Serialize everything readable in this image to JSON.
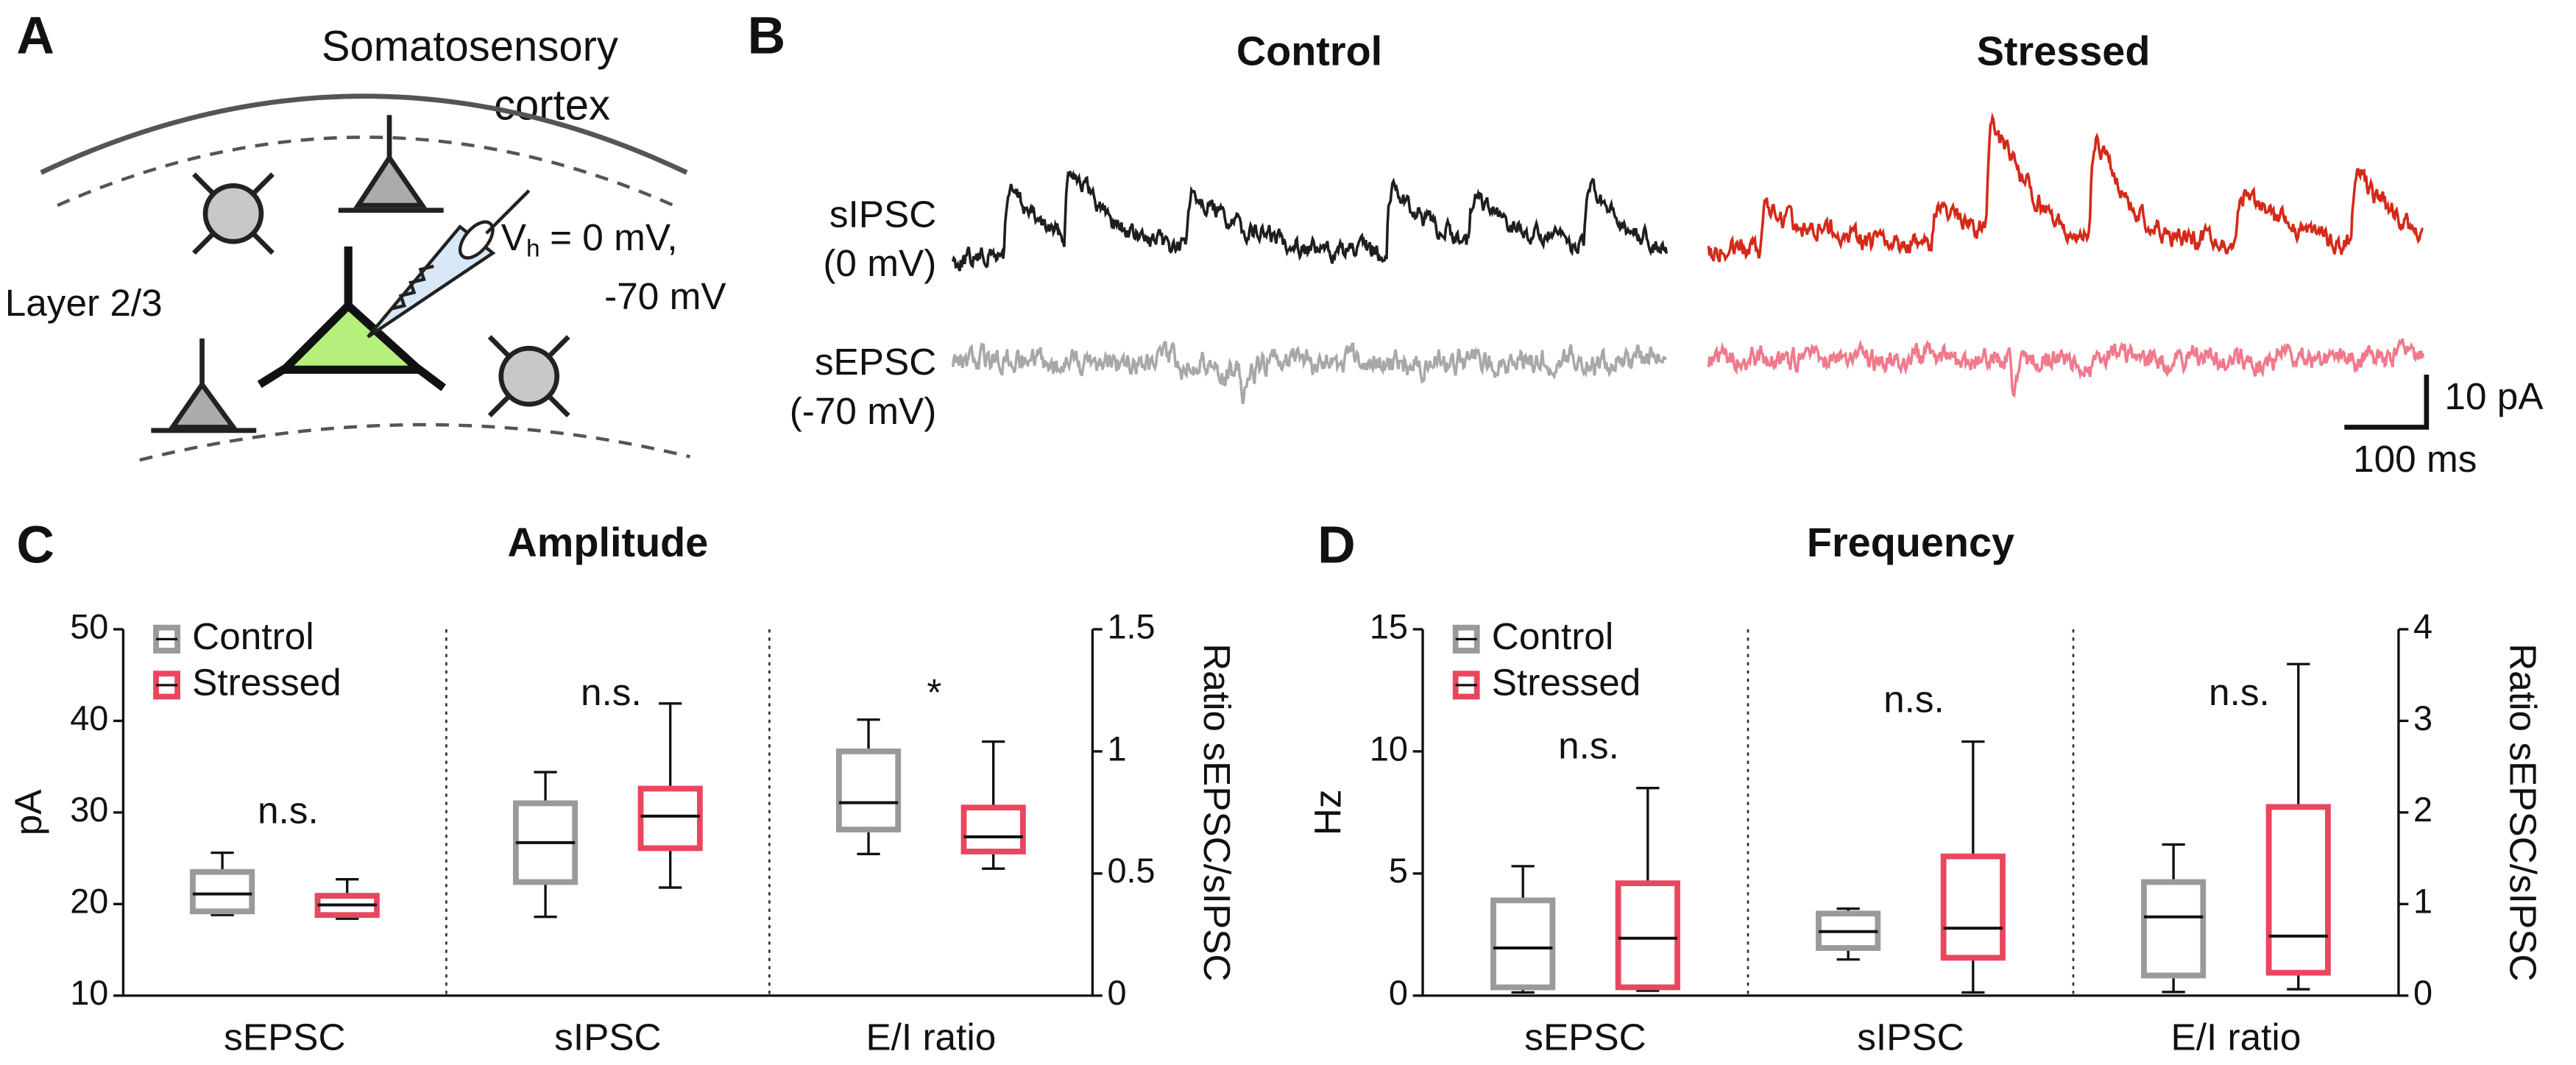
{
  "panel_a": {
    "letter": "A",
    "region": [
      "Somatosensory",
      "cortex"
    ],
    "holding": {
      "symbol": "V",
      "subscript": "h",
      "text": "= 0 mV,",
      "text2": "-70 mV"
    },
    "layer": "Layer 2/3"
  },
  "panel_b": {
    "letter": "B",
    "conditions": [
      "Control",
      "Stressed"
    ],
    "traces": [
      {
        "label": "sIPSC",
        "holding": "(0 mV)"
      },
      {
        "label": "sEPSC",
        "holding": "(-70 mV)"
      }
    ],
    "scale_bar": {
      "y": "10 pA",
      "x": "100 ms"
    }
  },
  "chart_data": [
    {
      "type": "box",
      "panel": "C",
      "title": "Amplitude",
      "ylabel": "pA",
      "y2label": "Ratio sEPSC/sIPSC",
      "categories": [
        "sEPSC",
        "sIPSC",
        "E/I ratio"
      ],
      "category_axis": [
        "y",
        "y",
        "y2"
      ],
      "ylim": [
        10,
        50
      ],
      "yticks": [
        10,
        20,
        30,
        40,
        50
      ],
      "y2lim": [
        0,
        1.5
      ],
      "y2ticks": [
        0,
        0.5,
        1,
        1.5
      ],
      "grid": false,
      "legend": "upper left",
      "series": [
        {
          "name": "Control",
          "color": "#9a9a9a",
          "values": [
            {
              "low": 18.8,
              "q1": 19.2,
              "median": 21.1,
              "q3": 23.5,
              "high": 25.6
            },
            {
              "low": 18.6,
              "q1": 22.4,
              "median": 26.7,
              "q3": 31.0,
              "high": 34.4
            },
            {
              "low": 0.58,
              "q1": 0.68,
              "median": 0.79,
              "q3": 1.0,
              "high": 1.13
            }
          ]
        },
        {
          "name": "Stressed",
          "color": "#e8475f",
          "values": [
            {
              "low": 18.4,
              "q1": 18.8,
              "median": 19.9,
              "q3": 20.9,
              "high": 22.7
            },
            {
              "low": 21.8,
              "q1": 26.1,
              "median": 29.6,
              "q3": 32.6,
              "high": 41.9
            },
            {
              "low": 0.52,
              "q1": 0.59,
              "median": 0.65,
              "q3": 0.77,
              "high": 1.04
            }
          ]
        }
      ],
      "annotations": [
        "n.s.",
        "n.s.",
        "*"
      ]
    },
    {
      "type": "box",
      "panel": "D",
      "title": "Frequency",
      "ylabel": "Hz",
      "y2label": "Ratio sEPSC/sIPSC",
      "categories": [
        "sEPSC",
        "sIPSC",
        "E/I ratio"
      ],
      "category_axis": [
        "y",
        "y",
        "y2"
      ],
      "ylim": [
        0,
        15
      ],
      "yticks": [
        0,
        5,
        10,
        15
      ],
      "y2lim": [
        0,
        4
      ],
      "y2ticks": [
        0,
        1,
        2,
        3,
        4
      ],
      "grid": false,
      "legend": "upper left",
      "series": [
        {
          "name": "Control",
          "color": "#9a9a9a",
          "values": [
            {
              "low": 0.13,
              "q1": 0.34,
              "median": 1.95,
              "q3": 3.9,
              "high": 5.3
            },
            {
              "low": 1.48,
              "q1": 1.95,
              "median": 2.62,
              "q3": 3.36,
              "high": 3.56
            },
            {
              "low": 0.04,
              "q1": 0.22,
              "median": 0.86,
              "q3": 1.24,
              "high": 1.65
            }
          ]
        },
        {
          "name": "Stressed",
          "color": "#e8475f",
          "values": [
            {
              "low": 0.2,
              "q1": 0.34,
              "median": 2.35,
              "q3": 4.6,
              "high": 8.5
            },
            {
              "low": 0.13,
              "q1": 1.55,
              "median": 2.76,
              "q3": 5.7,
              "high": 10.4
            },
            {
              "low": 0.07,
              "q1": 0.25,
              "median": 0.65,
              "q3": 2.06,
              "high": 3.62
            }
          ]
        }
      ],
      "annotations": [
        "n.s.",
        "n.s.",
        "n.s."
      ]
    }
  ]
}
